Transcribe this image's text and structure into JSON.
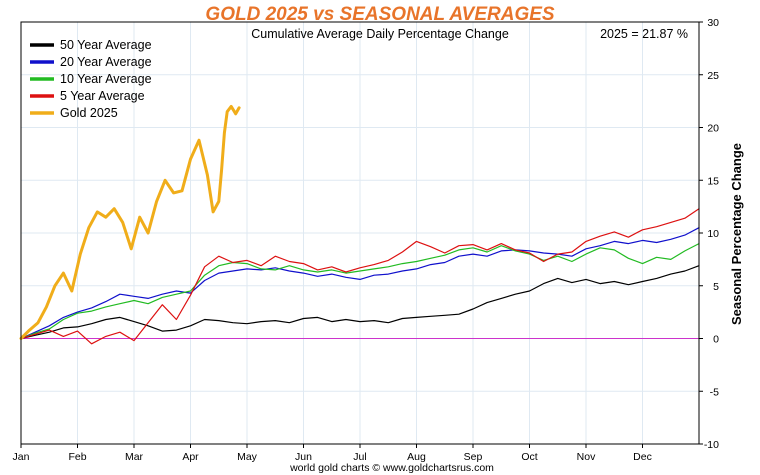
{
  "chart_data": {
    "type": "line",
    "title": "GOLD 2025 vs SEASONAL AVERAGES",
    "subtitle": "Cumulative Average Daily Percentage Change",
    "annotation": "2025 = 21.87 %",
    "ylabel": "Seasonal Percentage Change",
    "footer": "world gold charts © www.goldchartsrus.com",
    "x_tick_labels": [
      "Jan",
      "Feb",
      "Mar",
      "Apr",
      "May",
      "Jun",
      "Jul",
      "Aug",
      "Sep",
      "Oct",
      "Nov",
      "Dec"
    ],
    "x_unit": "month (fractional, 0 = Jan 1, 12 = Dec 31)",
    "xlim": [
      0,
      12
    ],
    "ylim": [
      -10,
      30
    ],
    "y_ticks": [
      -10,
      -5,
      0,
      5,
      10,
      15,
      20,
      25,
      30
    ],
    "y_tick_labels": [
      "-10",
      "-5",
      "0",
      "5",
      "10",
      "15",
      "20",
      "25",
      "30"
    ],
    "legend_placement": "top-left",
    "grid": true,
    "zero_line_color": "#cc33cc",
    "series": [
      {
        "name": "50 Year Average",
        "color": "#000000",
        "width": 1.2,
        "x": [
          0,
          0.25,
          0.5,
          0.75,
          1,
          1.25,
          1.5,
          1.75,
          2,
          2.25,
          2.5,
          2.75,
          3,
          3.25,
          3.5,
          3.75,
          4,
          4.25,
          4.5,
          4.75,
          5,
          5.25,
          5.5,
          5.75,
          6,
          6.25,
          6.5,
          6.75,
          7,
          7.25,
          7.5,
          7.75,
          8,
          8.25,
          8.5,
          8.75,
          9,
          9.25,
          9.5,
          9.75,
          10,
          10.25,
          10.5,
          10.75,
          11,
          11.25,
          11.5,
          11.75,
          12
        ],
        "y": [
          0,
          0.3,
          0.6,
          1.0,
          1.1,
          1.4,
          1.8,
          2.0,
          1.6,
          1.2,
          0.7,
          0.8,
          1.2,
          1.8,
          1.7,
          1.5,
          1.4,
          1.6,
          1.7,
          1.5,
          1.9,
          2.0,
          1.6,
          1.8,
          1.6,
          1.7,
          1.5,
          1.9,
          2.0,
          2.1,
          2.2,
          2.3,
          2.8,
          3.4,
          3.8,
          4.2,
          4.5,
          5.2,
          5.7,
          5.3,
          5.6,
          5.2,
          5.4,
          5.1,
          5.4,
          5.7,
          6.1,
          6.4,
          6.9
        ]
      },
      {
        "name": "20 Year Average",
        "color": "#1010cc",
        "width": 1.2,
        "x": [
          0,
          0.25,
          0.5,
          0.75,
          1,
          1.25,
          1.5,
          1.75,
          2,
          2.25,
          2.5,
          2.75,
          3,
          3.25,
          3.5,
          3.75,
          4,
          4.25,
          4.5,
          4.75,
          5,
          5.25,
          5.5,
          5.75,
          6,
          6.25,
          6.5,
          6.75,
          7,
          7.25,
          7.5,
          7.75,
          8,
          8.25,
          8.5,
          8.75,
          9,
          9.25,
          9.5,
          9.75,
          10,
          10.25,
          10.5,
          10.75,
          11,
          11.25,
          11.5,
          11.75,
          12
        ],
        "y": [
          0,
          0.6,
          1.2,
          2.0,
          2.5,
          2.9,
          3.5,
          4.2,
          4.0,
          3.8,
          4.2,
          4.5,
          4.3,
          5.5,
          6.2,
          6.4,
          6.6,
          6.5,
          6.7,
          6.4,
          6.2,
          5.9,
          6.1,
          5.8,
          5.6,
          6.0,
          6.1,
          6.4,
          6.6,
          7.0,
          7.2,
          7.8,
          8.0,
          7.8,
          8.3,
          8.4,
          8.3,
          8.1,
          8.0,
          7.8,
          8.5,
          8.8,
          9.2,
          9.0,
          9.3,
          9.1,
          9.4,
          9.8,
          10.5
        ]
      },
      {
        "name": "10 Year Average",
        "color": "#22bb22",
        "width": 1.2,
        "x": [
          0,
          0.25,
          0.5,
          0.75,
          1,
          1.25,
          1.5,
          1.75,
          2,
          2.25,
          2.5,
          2.75,
          3,
          3.25,
          3.5,
          3.75,
          4,
          4.25,
          4.5,
          4.75,
          5,
          5.25,
          5.5,
          5.75,
          6,
          6.25,
          6.5,
          6.75,
          7,
          7.25,
          7.5,
          7.75,
          8,
          8.25,
          8.5,
          8.75,
          9,
          9.25,
          9.5,
          9.75,
          10,
          10.25,
          10.5,
          10.75,
          11,
          11.25,
          11.5,
          11.75,
          12
        ],
        "y": [
          0,
          0.5,
          0.9,
          1.8,
          2.4,
          2.6,
          3.0,
          3.3,
          3.6,
          3.3,
          3.9,
          4.2,
          4.5,
          6.0,
          6.9,
          7.2,
          7.1,
          6.6,
          6.5,
          6.9,
          6.5,
          6.3,
          6.5,
          6.2,
          6.4,
          6.6,
          6.8,
          7.1,
          7.3,
          7.6,
          7.9,
          8.4,
          8.6,
          8.2,
          8.8,
          8.3,
          8.0,
          7.4,
          7.8,
          7.3,
          8.0,
          8.6,
          8.4,
          7.6,
          7.1,
          7.7,
          7.5,
          8.3,
          9.0
        ]
      },
      {
        "name": "5 Year Average",
        "color": "#dd1111",
        "width": 1.2,
        "x": [
          0,
          0.25,
          0.5,
          0.75,
          1,
          1.25,
          1.5,
          1.75,
          2,
          2.25,
          2.5,
          2.75,
          3,
          3.25,
          3.5,
          3.75,
          4,
          4.25,
          4.5,
          4.75,
          5,
          5.25,
          5.5,
          5.75,
          6,
          6.25,
          6.5,
          6.75,
          7,
          7.25,
          7.5,
          7.75,
          8,
          8.25,
          8.5,
          8.75,
          9,
          9.25,
          9.5,
          9.75,
          10,
          10.25,
          10.5,
          10.75,
          11,
          11.25,
          11.5,
          11.75,
          12
        ],
        "y": [
          0,
          0.4,
          0.8,
          0.2,
          0.7,
          -0.5,
          0.2,
          0.6,
          -0.2,
          1.5,
          3.2,
          1.8,
          4.1,
          6.8,
          7.8,
          7.2,
          7.4,
          6.9,
          7.8,
          7.3,
          7.1,
          6.5,
          6.8,
          6.3,
          6.7,
          7.0,
          7.4,
          8.2,
          9.2,
          8.7,
          8.1,
          8.8,
          8.9,
          8.4,
          9.0,
          8.4,
          8.1,
          7.3,
          8.0,
          8.2,
          9.2,
          9.7,
          10.1,
          9.6,
          10.3,
          10.6,
          11.0,
          11.4,
          12.3
        ]
      },
      {
        "name": "Gold 2025",
        "color": "#f0ad1a",
        "width": 3,
        "x": [
          0,
          0.15,
          0.3,
          0.45,
          0.6,
          0.75,
          0.9,
          1.05,
          1.2,
          1.35,
          1.5,
          1.65,
          1.8,
          1.95,
          2.1,
          2.25,
          2.4,
          2.55,
          2.7,
          2.85,
          3.0,
          3.15,
          3.3,
          3.4,
          3.5,
          3.55,
          3.6,
          3.65,
          3.72,
          3.8,
          3.86
        ],
        "y": [
          0,
          0.8,
          1.5,
          3.0,
          5.0,
          6.2,
          4.5,
          8.0,
          10.5,
          12.0,
          11.5,
          12.3,
          11.0,
          8.5,
          11.5,
          10.0,
          13.0,
          15.0,
          13.8,
          14.0,
          17.0,
          18.8,
          15.5,
          12.0,
          13.0,
          16.0,
          19.5,
          21.5,
          22.0,
          21.3,
          21.87
        ]
      }
    ]
  }
}
